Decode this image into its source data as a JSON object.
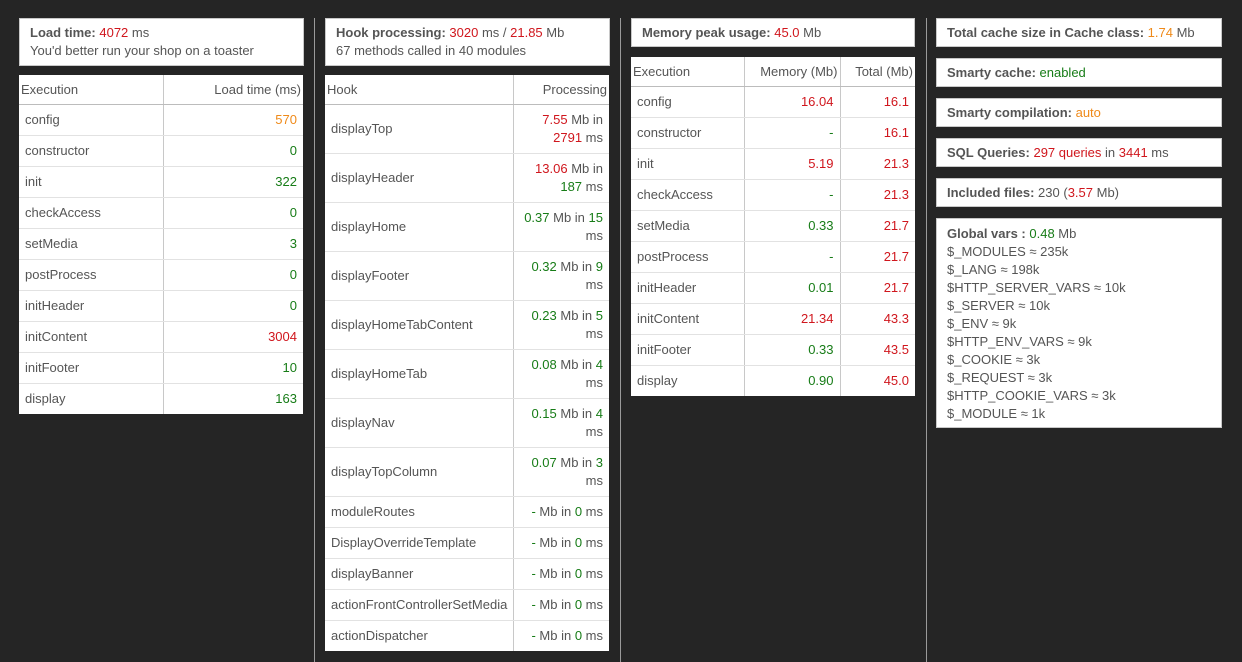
{
  "colors": {
    "red": "#d0161d",
    "green": "#177c17",
    "orange": "#ef8a1a",
    "background": "#252525"
  },
  "load_box": {
    "label": "Load time",
    "sep": ": ",
    "value": "4072",
    "unit": " ms",
    "comment": "You'd better run your shop on a toaster"
  },
  "hook_box": {
    "label": "Hook processing",
    "sep": ": ",
    "time": "3020",
    "time_unit": " ms / ",
    "memory": "21.85",
    "memory_unit": " Mb",
    "summary": "67 methods called in 40 modules"
  },
  "memory_box": {
    "label": "Memory peak usage",
    "sep": ": ",
    "value": "45.0",
    "unit": " Mb"
  },
  "execution_table": {
    "headers": [
      "Execution",
      "Load time (ms)"
    ],
    "rows": [
      {
        "name": "config",
        "value": "570",
        "color": "orange"
      },
      {
        "name": "constructor",
        "value": "0",
        "color": "green"
      },
      {
        "name": "init",
        "value": "322",
        "color": "green"
      },
      {
        "name": "checkAccess",
        "value": "0",
        "color": "green"
      },
      {
        "name": "setMedia",
        "value": "3",
        "color": "green"
      },
      {
        "name": "postProcess",
        "value": "0",
        "color": "green"
      },
      {
        "name": "initHeader",
        "value": "0",
        "color": "green"
      },
      {
        "name": "initContent",
        "value": "3004",
        "color": "red"
      },
      {
        "name": "initFooter",
        "value": "10",
        "color": "green"
      },
      {
        "name": "display",
        "value": "163",
        "color": "green"
      }
    ]
  },
  "hook_table": {
    "headers": [
      "Hook",
      "Processing"
    ],
    "rows": [
      {
        "name": "displayTop",
        "mb": "7.55",
        "mb_color": "red",
        "ms": "2791",
        "ms_color": "red"
      },
      {
        "name": "displayHeader",
        "mb": "13.06",
        "mb_color": "red",
        "ms": "187",
        "ms_color": "green"
      },
      {
        "name": "displayHome",
        "mb": "0.37",
        "mb_color": "green",
        "ms": "15",
        "ms_color": "green"
      },
      {
        "name": "displayFooter",
        "mb": "0.32",
        "mb_color": "green",
        "ms": "9",
        "ms_color": "green"
      },
      {
        "name": "displayHomeTabContent",
        "mb": "0.23",
        "mb_color": "green",
        "ms": "5",
        "ms_color": "green"
      },
      {
        "name": "displayHomeTab",
        "mb": "0.08",
        "mb_color": "green",
        "ms": "4",
        "ms_color": "green"
      },
      {
        "name": "displayNav",
        "mb": "0.15",
        "mb_color": "green",
        "ms": "4",
        "ms_color": "green"
      },
      {
        "name": "displayTopColumn",
        "mb": "0.07",
        "mb_color": "green",
        "ms": "3",
        "ms_color": "green"
      },
      {
        "name": "moduleRoutes",
        "mb": "-",
        "mb_color": "green",
        "ms": "0",
        "ms_color": "green"
      },
      {
        "name": "DisplayOverrideTemplate",
        "mb": "-",
        "mb_color": "green",
        "ms": "0",
        "ms_color": "green"
      },
      {
        "name": "displayBanner",
        "mb": "-",
        "mb_color": "green",
        "ms": "0",
        "ms_color": "green"
      },
      {
        "name": "actionFrontControllerSetMedia",
        "mb": "-",
        "mb_color": "green",
        "ms": "0",
        "ms_color": "green"
      },
      {
        "name": "actionDispatcher",
        "mb": "-",
        "mb_color": "green",
        "ms": "0",
        "ms_color": "green"
      }
    ],
    "mb_in": " Mb in ",
    "ms_unit": " ms"
  },
  "memory_table": {
    "headers": [
      "Execution",
      "Memory (Mb)",
      "Total (Mb)"
    ],
    "rows": [
      {
        "name": "config",
        "memory": "16.04",
        "memory_color": "red",
        "total": "16.1"
      },
      {
        "name": "constructor",
        "memory": "-",
        "memory_color": "green",
        "total": "16.1"
      },
      {
        "name": "init",
        "memory": "5.19",
        "memory_color": "red",
        "total": "21.3"
      },
      {
        "name": "checkAccess",
        "memory": "-",
        "memory_color": "green",
        "total": "21.3"
      },
      {
        "name": "setMedia",
        "memory": "0.33",
        "memory_color": "green",
        "total": "21.7"
      },
      {
        "name": "postProcess",
        "memory": "-",
        "memory_color": "green",
        "total": "21.7"
      },
      {
        "name": "initHeader",
        "memory": "0.01",
        "memory_color": "green",
        "total": "21.7"
      },
      {
        "name": "initContent",
        "memory": "21.34",
        "memory_color": "red",
        "total": "43.3"
      },
      {
        "name": "initFooter",
        "memory": "0.33",
        "memory_color": "green",
        "total": "43.5"
      },
      {
        "name": "display",
        "memory": "0.90",
        "memory_color": "green",
        "total": "45.0"
      }
    ]
  },
  "cache_box": {
    "label": "Total cache size in Cache class",
    "sep": ": ",
    "value": "1.74",
    "unit": " Mb"
  },
  "smarty_cache": {
    "label": "Smarty cache",
    "sep": ": ",
    "value": "enabled"
  },
  "smarty_compilation": {
    "label": "Smarty compilation",
    "sep": ": ",
    "value": "auto"
  },
  "sql_box": {
    "label": "SQL Queries",
    "sep": ": ",
    "count": "297 queries",
    "mid": " in ",
    "time": "3441",
    "unit": " ms"
  },
  "files_box": {
    "label": "Included files",
    "sep": ": ",
    "count": "230",
    "open": " (",
    "size": "3.57",
    "close": " Mb)"
  },
  "globals_box": {
    "label": "Global vars",
    "sep": " : ",
    "value": "0.48",
    "unit": " Mb",
    "vars": [
      "$_MODULES ≈ 235k",
      "$_LANG ≈ 198k",
      "$HTTP_SERVER_VARS ≈ 10k",
      "$_SERVER ≈ 10k",
      "$_ENV ≈ 9k",
      "$HTTP_ENV_VARS ≈ 9k",
      "$_COOKIE ≈ 3k",
      "$_REQUEST ≈ 3k",
      "$HTTP_COOKIE_VARS ≈ 3k",
      "$_MODULE ≈ 1k"
    ]
  }
}
